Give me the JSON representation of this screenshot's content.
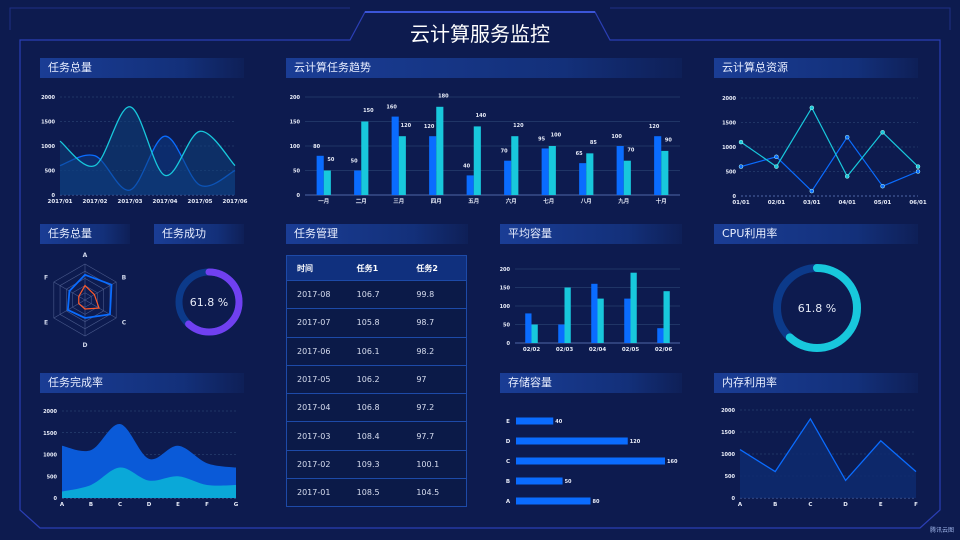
{
  "title": "云计算服务监控",
  "panels": {
    "p1": "任务总量",
    "p2": "云计算任务趋势",
    "p3": "云计算总资源",
    "p4": "任务总量",
    "p5": "任务成功",
    "p6": "任务管理",
    "p7": "平均容量",
    "p8": "CPU利用率",
    "p9": "任务完成率",
    "p10": "存储容量",
    "p11": "内存利用率"
  },
  "colors": {
    "blue": "#0a6cff",
    "cyan": "#18c8dc",
    "purple": "#7040f0",
    "orange": "#ff5a2a"
  },
  "table": {
    "headers": [
      "时间",
      "任务1",
      "任务2"
    ],
    "rows": [
      [
        "2017-08",
        "106.7",
        "99.8"
      ],
      [
        "2017-07",
        "105.8",
        "98.7"
      ],
      [
        "2017-06",
        "106.1",
        "98.2"
      ],
      [
        "2017-05",
        "106.2",
        "97"
      ],
      [
        "2017-04",
        "106.8",
        "97.2"
      ],
      [
        "2017-03",
        "108.4",
        "97.7"
      ],
      [
        "2017-02",
        "109.3",
        "100.1"
      ],
      [
        "2017-01",
        "108.5",
        "104.5"
      ]
    ]
  },
  "watermark": "腾讯云图",
  "chart_data": [
    {
      "id": "c1",
      "type": "area",
      "smooth": true,
      "x": [
        "2017/01",
        "2017/02",
        "2017/03",
        "2017/04",
        "2017/05",
        "2017/06"
      ],
      "ylim": [
        0,
        2000
      ],
      "yticks": [
        0,
        500,
        1000,
        1500,
        2000
      ],
      "grid": true,
      "series": [
        {
          "values": [
            600,
            800,
            100,
            1200,
            200,
            500
          ]
        },
        {
          "values": [
            1100,
            600,
            1800,
            400,
            1300,
            600
          ]
        }
      ]
    },
    {
      "id": "c2",
      "type": "bar",
      "categories": [
        "一月",
        "二月",
        "三月",
        "四月",
        "五月",
        "六月",
        "七月",
        "八月",
        "九月",
        "十月"
      ],
      "ylim": [
        0,
        200
      ],
      "yticks": [
        0,
        50,
        100,
        150,
        200
      ],
      "grid": true,
      "data_labels": true,
      "series": [
        {
          "values": [
            80,
            50,
            160,
            120,
            40,
            70,
            95,
            65,
            100,
            120
          ]
        },
        {
          "values": [
            50,
            150,
            120,
            180,
            140,
            120,
            100,
            85,
            70,
            90
          ]
        }
      ]
    },
    {
      "id": "c3",
      "type": "line",
      "x": [
        "01/01",
        "02/01",
        "03/01",
        "04/01",
        "05/01",
        "06/01"
      ],
      "ylim": [
        0,
        2000
      ],
      "yticks": [
        0,
        500,
        1000,
        1500,
        2000
      ],
      "grid": true,
      "markers": true,
      "series": [
        {
          "values": [
            600,
            800,
            100,
            1200,
            200,
            500
          ]
        },
        {
          "values": [
            1100,
            600,
            1800,
            400,
            1300,
            600
          ]
        }
      ]
    },
    {
      "id": "c4",
      "type": "radar",
      "indicators": [
        "A",
        "B",
        "C",
        "D",
        "E",
        "F"
      ],
      "max": 100,
      "series": [
        {
          "values": [
            70,
            85,
            80,
            50,
            55,
            50
          ]
        },
        {
          "values": [
            40,
            30,
            45,
            25,
            20,
            20
          ]
        }
      ]
    },
    {
      "id": "c5",
      "type": "pie",
      "variant": "donut",
      "value": 61.8,
      "label": "61.8 %"
    },
    {
      "id": "c6",
      "type": "bar",
      "categories": [
        "02/02",
        "02/03",
        "02/04",
        "02/05",
        "02/06"
      ],
      "ylim": [
        0,
        200
      ],
      "yticks": [
        0,
        50,
        100,
        150,
        200
      ],
      "grid": true,
      "series": [
        {
          "values": [
            80,
            50,
            160,
            120,
            40
          ]
        },
        {
          "values": [
            50,
            150,
            120,
            190,
            140
          ]
        }
      ]
    },
    {
      "id": "c7",
      "type": "pie",
      "variant": "donut",
      "value": 61.8,
      "label": "61.8 %"
    },
    {
      "id": "c8",
      "type": "area",
      "stacked": true,
      "smooth": true,
      "x": [
        "A",
        "B",
        "C",
        "D",
        "E",
        "F",
        "G"
      ],
      "ylim": [
        0,
        2000
      ],
      "yticks": [
        0,
        500,
        1000,
        1500,
        2000
      ],
      "grid": true,
      "series": [
        {
          "values": [
            150,
            300,
            700,
            400,
            500,
            300,
            300
          ]
        },
        {
          "values": [
            1050,
            800,
            1000,
            500,
            700,
            500,
            400
          ]
        }
      ]
    },
    {
      "id": "c9",
      "type": "bar",
      "orientation": "horizontal",
      "categories": [
        "A",
        "B",
        "C",
        "D",
        "E"
      ],
      "data_labels": true,
      "values": [
        80,
        50,
        160,
        120,
        40
      ]
    },
    {
      "id": "c10",
      "type": "area",
      "x": [
        "A",
        "B",
        "C",
        "D",
        "E",
        "F"
      ],
      "ylim": [
        0,
        2000
      ],
      "yticks": [
        0,
        500,
        1000,
        1500,
        2000
      ],
      "grid": true,
      "values": [
        1100,
        600,
        1800,
        400,
        1300,
        600
      ]
    }
  ]
}
